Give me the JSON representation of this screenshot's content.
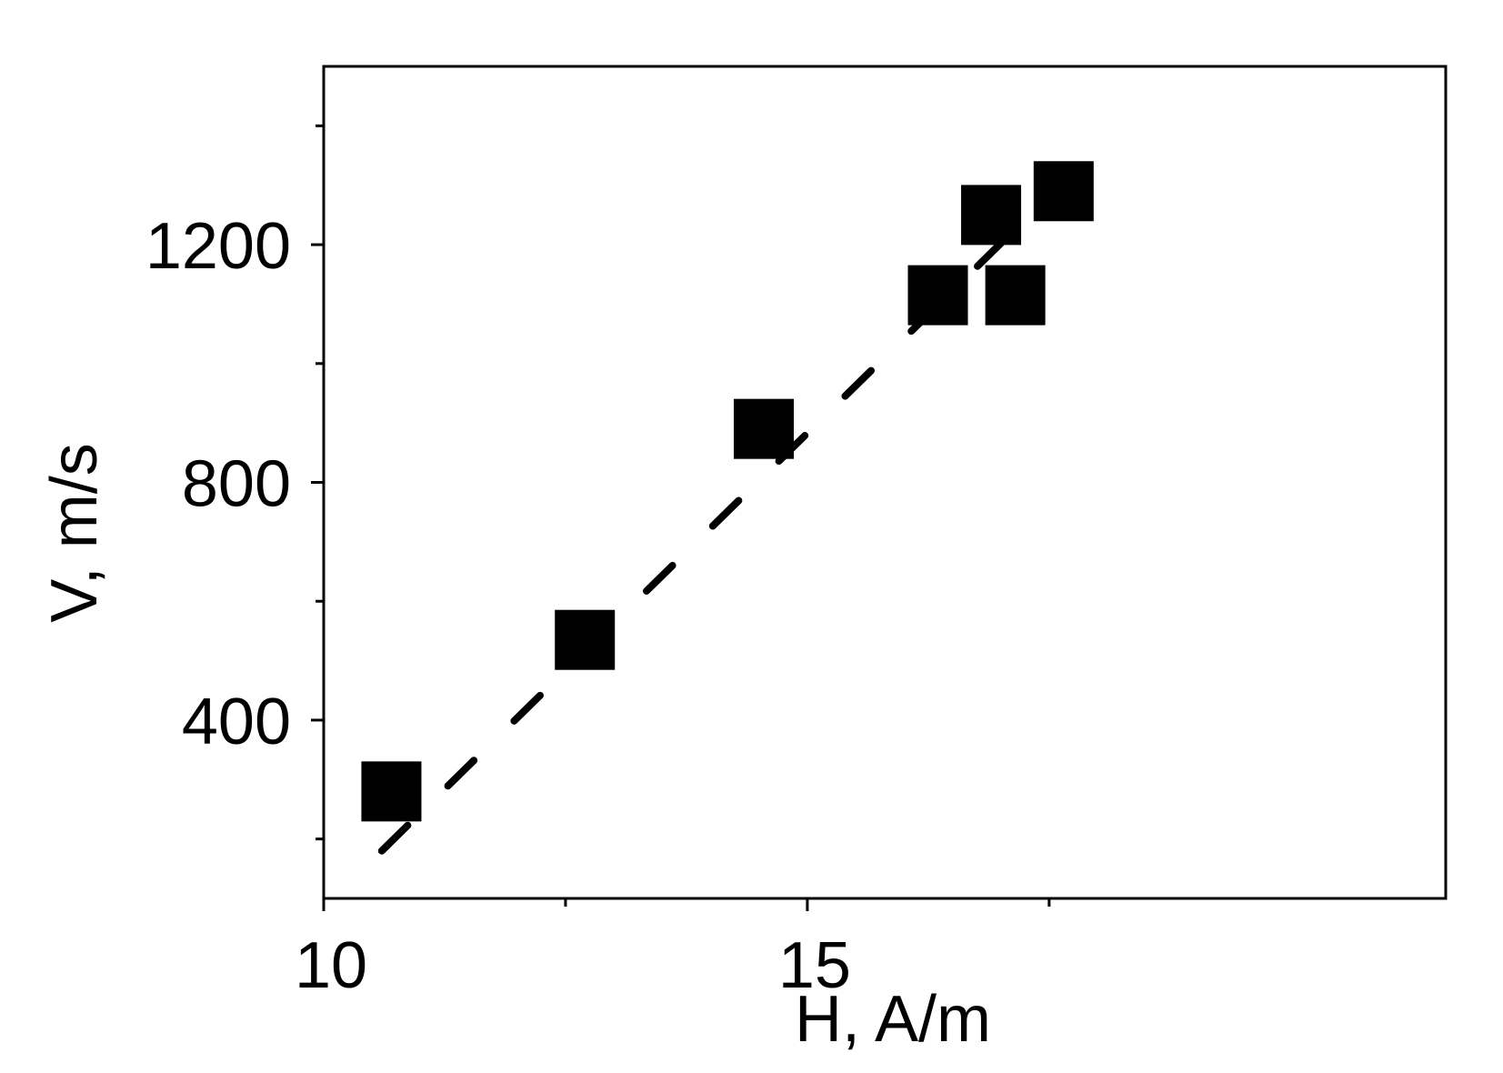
{
  "chart_data": {
    "type": "scatter",
    "title": "",
    "xlabel": "H, A/m",
    "ylabel": "V, m/s",
    "xlim": [
      10,
      21.6
    ],
    "ylim": [
      100,
      1500
    ],
    "x_ticks": [
      10,
      15
    ],
    "x_minor_ticks": [
      12.5,
      17.5
    ],
    "y_ticks": [
      400,
      800,
      1200
    ],
    "y_minor_ticks": [
      200,
      600,
      1000,
      1400
    ],
    "grid": false,
    "legend": "none",
    "series": [
      {
        "marker": "square",
        "color": "#000000",
        "points": [
          {
            "x": 10.7,
            "y": 280
          },
          {
            "x": 12.7,
            "y": 535
          },
          {
            "x": 14.55,
            "y": 890
          },
          {
            "x": 16.35,
            "y": 1115
          },
          {
            "x": 16.9,
            "y": 1250
          },
          {
            "x": 17.15,
            "y": 1115
          },
          {
            "x": 17.65,
            "y": 1290
          }
        ]
      }
    ],
    "fit_line": {
      "style": "dashed",
      "color": "#000000",
      "points": [
        {
          "x": 10.6,
          "y": 180
        },
        {
          "x": 17.8,
          "y": 1330
        }
      ]
    }
  }
}
